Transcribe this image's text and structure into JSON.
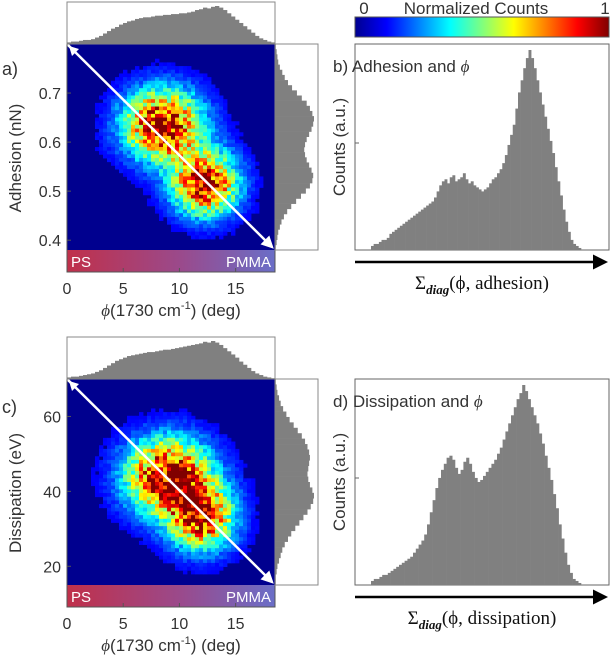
{
  "colorbar": {
    "label": "Normalized Counts",
    "min_label": "0",
    "max_label": "1"
  },
  "colors": {
    "hist": "#808080",
    "arrow": "#ffffff",
    "ps": "#c0304a",
    "pmma": "#6a6ec8"
  },
  "chart_data": [
    {
      "panel": "a)",
      "type": "heatmap",
      "xlabel_symbol": "ϕ",
      "xlabel_text": "(1730 cm",
      "xlabel_sup": "-1",
      "xlabel_unit": ") (deg)",
      "ylabel": "Adhesion (nN)",
      "xlim": [
        0,
        18.5
      ],
      "ylim": [
        0.38,
        0.8
      ],
      "xticks": [
        "0",
        "5",
        "10",
        "15"
      ],
      "xtick_values": [
        0,
        5,
        10,
        15
      ],
      "yticks": [
        "0.4",
        "0.5",
        "0.6",
        "0.7"
      ],
      "ytick_values": [
        0.4,
        0.5,
        0.6,
        0.7
      ],
      "left_material": "PS",
      "right_material": "PMMA",
      "clusters": [
        {
          "x": 8.5,
          "y": 0.635,
          "sx": 2.4,
          "sy": 0.05,
          "w": 1.0
        },
        {
          "x": 12.3,
          "y": 0.515,
          "sx": 2.0,
          "sy": 0.045,
          "w": 0.95
        }
      ],
      "diagonal": {
        "from": [
          0,
          0.8
        ],
        "to": [
          18.5,
          0.38
        ]
      },
      "top_hist": [
        2,
        3,
        3,
        4,
        5,
        5,
        6,
        8,
        10,
        13,
        16,
        19,
        21,
        24,
        26,
        28,
        29,
        31,
        32,
        33,
        33,
        34,
        35,
        35,
        36,
        36,
        37,
        37,
        38,
        38,
        39,
        40,
        42,
        43,
        45,
        44,
        46,
        47,
        45,
        42,
        38,
        34,
        30,
        26,
        22,
        18,
        14,
        10,
        7,
        5,
        3,
        2
      ],
      "right_hist": [
        1,
        2,
        3,
        4,
        6,
        9,
        12,
        16,
        21,
        27,
        33,
        39,
        43,
        46,
        48,
        47,
        45,
        42,
        39,
        37,
        36,
        37,
        39,
        42,
        45,
        47,
        46,
        43,
        38,
        32,
        26,
        20,
        15,
        11,
        8,
        6,
        4,
        3,
        2,
        1
      ],
      "diag_hist": {
        "panel_label": "b)",
        "title": "Adhesion and ϕ",
        "ylabel": "Counts (a.u.)",
        "xlabel_sigma": "Σ",
        "xlabel_sub": "diag",
        "xlabel_args": "(ϕ, adhesion)",
        "values": [
          2,
          3,
          3,
          4,
          5,
          5,
          6,
          8,
          9,
          10,
          11,
          12,
          13,
          14,
          15,
          16,
          17,
          18,
          19,
          20,
          21,
          22,
          23,
          24,
          26,
          29,
          32,
          34,
          35,
          33,
          36,
          37,
          34,
          35,
          36,
          38,
          35,
          33,
          34,
          32,
          31,
          30,
          29,
          30,
          31,
          33,
          35,
          36,
          38,
          40,
          43,
          47,
          52,
          57,
          62,
          70,
          78,
          84,
          90,
          95,
          99,
          95,
          90,
          84,
          78,
          72,
          66,
          60,
          54,
          48,
          41,
          34,
          27,
          20,
          14,
          9,
          5,
          3,
          2,
          1
        ]
      }
    },
    {
      "panel": "c)",
      "type": "heatmap",
      "xlabel_symbol": "ϕ",
      "xlabel_text": "(1730 cm",
      "xlabel_sup": "-1",
      "xlabel_unit": ") (deg)",
      "ylabel": "Dissipation (eV)",
      "xlim": [
        0,
        18.5
      ],
      "ylim": [
        15,
        70
      ],
      "xticks": [
        "0",
        "5",
        "10",
        "15"
      ],
      "xtick_values": [
        0,
        5,
        10,
        15
      ],
      "yticks": [
        "20",
        "40",
        "60"
      ],
      "ytick_values": [
        20,
        40,
        60
      ],
      "left_material": "PS",
      "right_material": "PMMA",
      "clusters": [
        {
          "x": 9.0,
          "y": 44,
          "sx": 2.6,
          "sy": 7,
          "w": 1.0
        },
        {
          "x": 12.0,
          "y": 33,
          "sx": 2.0,
          "sy": 6,
          "w": 0.85
        }
      ],
      "diagonal": {
        "from": [
          0,
          70
        ],
        "to": [
          18.5,
          15
        ]
      },
      "top_hist": [
        2,
        3,
        3,
        4,
        5,
        6,
        7,
        9,
        11,
        14,
        17,
        20,
        23,
        25,
        27,
        29,
        30,
        31,
        32,
        33,
        34,
        34,
        35,
        36,
        37,
        37,
        38,
        39,
        40,
        41,
        42,
        43,
        44,
        45,
        47,
        46,
        48,
        46,
        43,
        39,
        35,
        31,
        27,
        22,
        18,
        14,
        10,
        7,
        5,
        3,
        2,
        1
      ],
      "right_hist": [
        1,
        2,
        3,
        5,
        7,
        10,
        14,
        18,
        23,
        28,
        33,
        37,
        40,
        42,
        43,
        42,
        41,
        40,
        41,
        43,
        46,
        48,
        47,
        44,
        40,
        35,
        30,
        25,
        20,
        16,
        12,
        9,
        7,
        5,
        3,
        2,
        1,
        1
      ],
      "diag_hist": {
        "panel_label": "d)",
        "title": "Dissipation and ϕ",
        "ylabel": "Counts (a.u.)",
        "xlabel_sigma": "Σ",
        "xlabel_sub": "diag",
        "xlabel_args": "(ϕ, dissipation)",
        "values": [
          2,
          3,
          3,
          4,
          5,
          5,
          6,
          7,
          8,
          9,
          10,
          11,
          12,
          13,
          14,
          16,
          18,
          20,
          22,
          25,
          30,
          36,
          42,
          48,
          53,
          57,
          60,
          63,
          64,
          62,
          58,
          55,
          57,
          61,
          63,
          60,
          56,
          53,
          51,
          52,
          54,
          56,
          58,
          60,
          62,
          65,
          68,
          72,
          76,
          80,
          84,
          88,
          92,
          95,
          99,
          96,
          92,
          88,
          84,
          80,
          75,
          70,
          64,
          58,
          52,
          45,
          38,
          30,
          23,
          16,
          10,
          6,
          3,
          2,
          1
        ]
      }
    }
  ]
}
